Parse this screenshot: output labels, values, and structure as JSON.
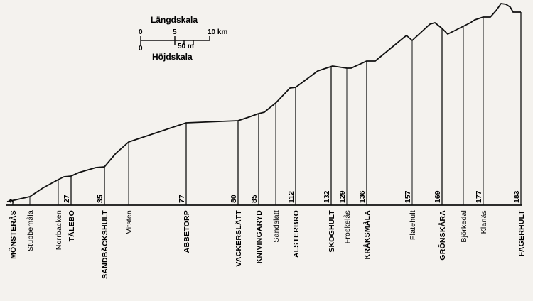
{
  "scale": {
    "length_title": "Längdskala",
    "length_ticks": [
      "0",
      "5",
      "10 km"
    ],
    "height_ticks": [
      "0",
      "50 m"
    ],
    "height_title": "Höjdskala"
  },
  "profile": {
    "baseline_label": "2",
    "stations": [
      {
        "name": "MÖNSTERÅS",
        "elevation": "",
        "major": true
      },
      {
        "name": "Stubbemåla",
        "elevation": "",
        "major": false
      },
      {
        "name": "Norrbacken",
        "elevation": "",
        "major": false
      },
      {
        "name": "TÅLEBO",
        "elevation": "27",
        "major": true
      },
      {
        "name": "SANDBÄCKSHULT",
        "elevation": "35",
        "major": true
      },
      {
        "name": "Vitsten",
        "elevation": "",
        "major": false
      },
      {
        "name": "ABBETORP",
        "elevation": "77",
        "major": true
      },
      {
        "name": "VACKERSLÄTT",
        "elevation": "80",
        "major": true
      },
      {
        "name": "KNIVINGARYD",
        "elevation": "85",
        "major": true
      },
      {
        "name": "Sandslätt",
        "elevation": "",
        "major": false
      },
      {
        "name": "ALSTERBRO",
        "elevation": "112",
        "major": true
      },
      {
        "name": "SKOGHULT",
        "elevation": "132",
        "major": true
      },
      {
        "name": "Fröskelås",
        "elevation": "129",
        "major": false
      },
      {
        "name": "KRÅKSMÅLA",
        "elevation": "136",
        "major": true
      },
      {
        "name": "Flatehult",
        "elevation": "157",
        "major": false
      },
      {
        "name": "GRÖNSKÅRA",
        "elevation": "169",
        "major": true
      },
      {
        "name": "Björkedal",
        "elevation": "",
        "major": false
      },
      {
        "name": "Klanäs",
        "elevation": "177",
        "major": false
      },
      {
        "name": "FAGERHULT",
        "elevation": "183",
        "major": true
      }
    ]
  }
}
